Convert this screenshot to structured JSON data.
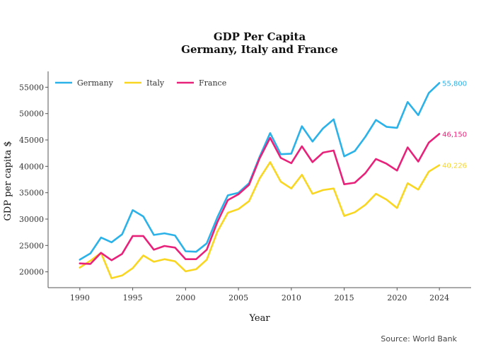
{
  "chart_data": {
    "type": "line",
    "title": "GDP Per Capita",
    "subtitle": "Germany, Italy and France",
    "xlabel": "Year",
    "ylabel": "GDP per capita $",
    "source": "Source: World Bank",
    "xlim": [
      1987,
      2027
    ],
    "ylim": [
      17000,
      58000
    ],
    "x_ticks": [
      1990,
      1995,
      2000,
      2005,
      2010,
      2015,
      2020,
      2024
    ],
    "y_ticks": [
      20000,
      25000,
      30000,
      35000,
      40000,
      45000,
      50000,
      55000
    ],
    "legend_position": "top-left",
    "grid": false,
    "x": [
      1990,
      1991,
      1992,
      1993,
      1994,
      1995,
      1996,
      1997,
      1998,
      1999,
      2000,
      2001,
      2002,
      2003,
      2004,
      2005,
      2006,
      2007,
      2008,
      2009,
      2010,
      2011,
      2012,
      2013,
      2014,
      2015,
      2016,
      2017,
      2018,
      2019,
      2020,
      2021,
      2022,
      2023,
      2024
    ],
    "series": [
      {
        "name": "Germany",
        "color": "#2bb2e8",
        "end_label": "55,800",
        "values": [
          22300,
          23500,
          26500,
          25600,
          27100,
          31700,
          30500,
          27000,
          27300,
          26900,
          23900,
          23800,
          25400,
          30300,
          34500,
          35000,
          36800,
          41800,
          46300,
          42300,
          42400,
          47600,
          44700,
          47200,
          48900,
          41900,
          42900,
          45600,
          48800,
          47500,
          47300,
          52200,
          49700,
          53900,
          55800
        ]
      },
      {
        "name": "Italy",
        "color": "#f8d622",
        "end_label": "40,226",
        "values": [
          20800,
          22100,
          23600,
          18800,
          19300,
          20700,
          23100,
          21900,
          22400,
          22000,
          20100,
          20500,
          22300,
          27600,
          31200,
          31900,
          33400,
          37700,
          40800,
          37100,
          35800,
          38400,
          34800,
          35500,
          35800,
          30600,
          31300,
          32700,
          34800,
          33700,
          32100,
          36800,
          35600,
          39000,
          40226
        ]
      },
      {
        "name": "France",
        "color": "#e8227a",
        "end_label": "46,150",
        "values": [
          21600,
          21500,
          23600,
          22200,
          23400,
          26800,
          26800,
          24200,
          24900,
          24600,
          22400,
          22400,
          24200,
          29400,
          33600,
          34700,
          36500,
          41500,
          45400,
          41600,
          40600,
          43800,
          40800,
          42600,
          43000,
          36600,
          36900,
          38700,
          41400,
          40500,
          39200,
          43600,
          40900,
          44500,
          46150
        ]
      }
    ]
  }
}
